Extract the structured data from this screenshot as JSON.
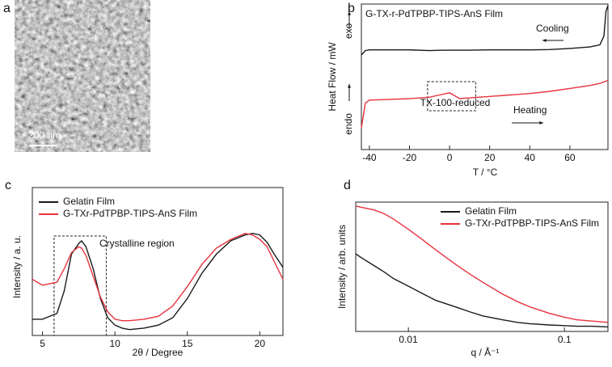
{
  "image_panel": {
    "label": "a",
    "scale_bar": "200 nm"
  },
  "chart_data": [
    {
      "type": "line",
      "label": "b",
      "title": "G-TX-r-PdTPBP-TIPS-AnS Film",
      "xlabel": "T / °C",
      "ylabel": "Heat Flow / mW",
      "annotations": [
        "exo",
        "endo",
        "Cooling",
        "Heating",
        "TX-100-reduced"
      ],
      "x": [
        -44,
        -42,
        -40,
        -30,
        -20,
        -10,
        -5,
        0,
        5,
        10,
        20,
        30,
        40,
        50,
        60,
        70,
        75,
        77,
        78,
        79
      ],
      "series": [
        {
          "color": "#1a1a1a",
          "values": [
            6.5,
            6.8,
            6.85,
            6.85,
            6.85,
            6.8,
            6.82,
            6.83,
            6.83,
            6.83,
            6.85,
            6.85,
            6.85,
            6.87,
            6.95,
            7.05,
            7.2,
            7.8,
            9.5,
            9.9
          ]
        },
        {
          "color": "#e8323c",
          "values": [
            1.5,
            3.2,
            3.4,
            3.45,
            3.5,
            3.6,
            3.75,
            3.9,
            3.5,
            3.55,
            3.65,
            3.75,
            3.85,
            4.0,
            4.2,
            4.4,
            4.55,
            4.65,
            4.7,
            4.75
          ]
        }
      ],
      "xlim": [
        -44,
        79
      ],
      "ylim": [
        0,
        10
      ],
      "xticks": [
        -40,
        -20,
        0,
        20,
        40,
        60
      ],
      "xlog": false
    },
    {
      "type": "line",
      "label": "c",
      "xlabel": "2θ  / Degree",
      "ylabel": "Intensity / a. u.",
      "annotations": [
        "Crystalline region"
      ],
      "legend": "upper left",
      "x": [
        4.3,
        5,
        6,
        6.5,
        7,
        7.5,
        7.7,
        8,
        8.5,
        9,
        9.5,
        10,
        10.5,
        11,
        12,
        13,
        14,
        15,
        16,
        17,
        18,
        19,
        19.5,
        20,
        20.5,
        21,
        21.6
      ],
      "series": [
        {
          "name": "Gelatin Film",
          "color": "#1a1a1a",
          "values": [
            1.1,
            1.1,
            1.5,
            3,
            5.5,
            6.2,
            6.4,
            6.0,
            4.5,
            2.5,
            1.2,
            0.7,
            0.5,
            0.4,
            0.5,
            0.7,
            1.2,
            2.5,
            4.2,
            5.5,
            6.4,
            6.8,
            6.9,
            6.8,
            6.3,
            5.5,
            4.6
          ]
        },
        {
          "name": "G-TXr-PdTPBP-TIPS-AnS Film",
          "color": "#e8323c",
          "values": [
            3.8,
            3.4,
            3.6,
            4.5,
            5.6,
            6.0,
            5.9,
            5.4,
            4.0,
            2.6,
            1.6,
            1.1,
            1.0,
            1.0,
            1.1,
            1.3,
            2.0,
            3.3,
            4.8,
            5.9,
            6.5,
            6.9,
            6.8,
            6.5,
            6.0,
            5.0,
            3.8
          ]
        }
      ],
      "xlim": [
        4.3,
        21.6
      ],
      "ylim": [
        0,
        10
      ],
      "xticks": [
        5,
        10,
        15,
        20
      ],
      "xlog": false
    },
    {
      "type": "line",
      "label": "d",
      "xlabel": "q / Å⁻¹",
      "ylabel": "Intensity / arb. units",
      "legend": "upper center",
      "x": [
        0.0046,
        0.005,
        0.006,
        0.007,
        0.008,
        0.01,
        0.012,
        0.015,
        0.02,
        0.025,
        0.03,
        0.04,
        0.05,
        0.06,
        0.08,
        0.1,
        0.12,
        0.15,
        0.19
      ],
      "series": [
        {
          "name": "Gelatin Film",
          "color": "#1a1a1a",
          "values": [
            6.0,
            5.7,
            5.1,
            4.6,
            4.1,
            3.5,
            3.0,
            2.4,
            1.9,
            1.5,
            1.2,
            0.9,
            0.7,
            0.6,
            0.5,
            0.45,
            0.4,
            0.4,
            0.35
          ]
        },
        {
          "name": "G-TXr-PdTPBP-TIPS-AnS Film",
          "color": "#e8323c",
          "values": [
            9.7,
            9.6,
            9.4,
            9.1,
            8.7,
            7.9,
            7.2,
            6.3,
            5.2,
            4.4,
            3.8,
            2.9,
            2.3,
            1.9,
            1.4,
            1.1,
            0.9,
            0.8,
            0.7
          ]
        }
      ],
      "xlim": [
        0.0046,
        0.19
      ],
      "ylim": [
        0,
        10
      ],
      "xticks": [
        0.01,
        0.1
      ],
      "xlog": true
    }
  ]
}
